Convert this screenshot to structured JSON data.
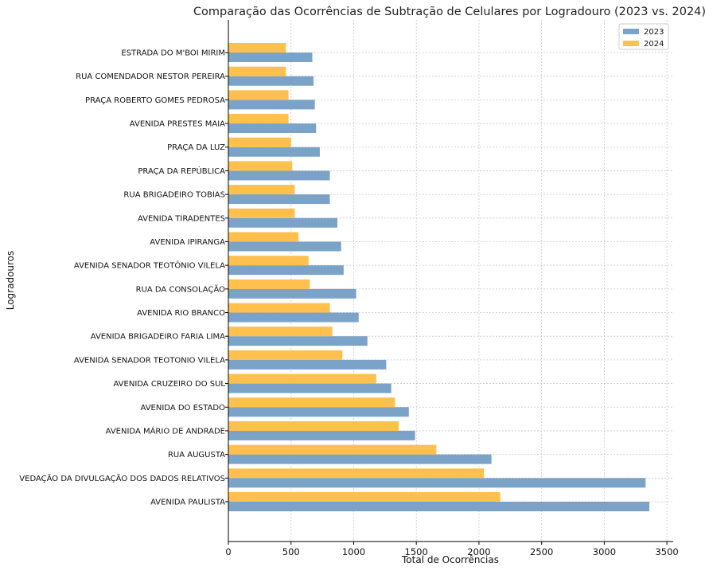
{
  "chart_data": {
    "type": "bar",
    "orientation": "horizontal",
    "title": "Comparação das Ocorrências de Subtração de Celulares por Logradouro (2023 vs. 2024)",
    "xlabel": "Total de Ocorrências",
    "ylabel": "Logradouros",
    "xlim": [
      0,
      3550
    ],
    "xticks": [
      0,
      500,
      1000,
      1500,
      2000,
      2500,
      3000,
      3500
    ],
    "grid": true,
    "legend_position": "top-right",
    "categories": [
      "AVENIDA PAULISTA",
      "VEDAÇÃO DA DIVULGAÇÃO DOS DADOS RELATIVOS",
      "RUA AUGUSTA",
      "AVENIDA MÁRIO DE ANDRADE",
      "AVENIDA DO ESTADO",
      "AVENIDA CRUZEIRO DO SUL",
      "AVENIDA SENADOR TEOTONIO VILELA",
      "AVENIDA BRIGADEIRO FARIA LIMA",
      "AVENIDA RIO BRANCO",
      "RUA DA CONSOLAÇÃO",
      "AVENIDA SENADOR TEOTÔNIO VILELA",
      "AVENIDA IPIRANGA",
      "AVENIDA TIRADENTES",
      "RUA BRIGADEIRO TOBIAS",
      "PRAÇA DA REPÚBLICA",
      "PRAÇA DA LUZ",
      "AVENIDA PRESTES MAIA",
      "PRAÇA ROBERTO GOMES PEDROSA",
      "RUA COMENDADOR NESTOR PEREIRA",
      "ESTRADA DO M'BOI MIRIM"
    ],
    "series": [
      {
        "name": "2023",
        "color": "#7BA3C8",
        "values": [
          3360,
          3330,
          2100,
          1490,
          1440,
          1300,
          1260,
          1110,
          1040,
          1020,
          920,
          900,
          870,
          810,
          810,
          730,
          700,
          690,
          680,
          670
        ]
      },
      {
        "name": "2024",
        "color": "#FFC04D",
        "values": [
          2170,
          2040,
          1660,
          1360,
          1330,
          1180,
          910,
          830,
          810,
          650,
          640,
          560,
          530,
          530,
          510,
          500,
          480,
          480,
          460,
          460
        ]
      }
    ]
  }
}
